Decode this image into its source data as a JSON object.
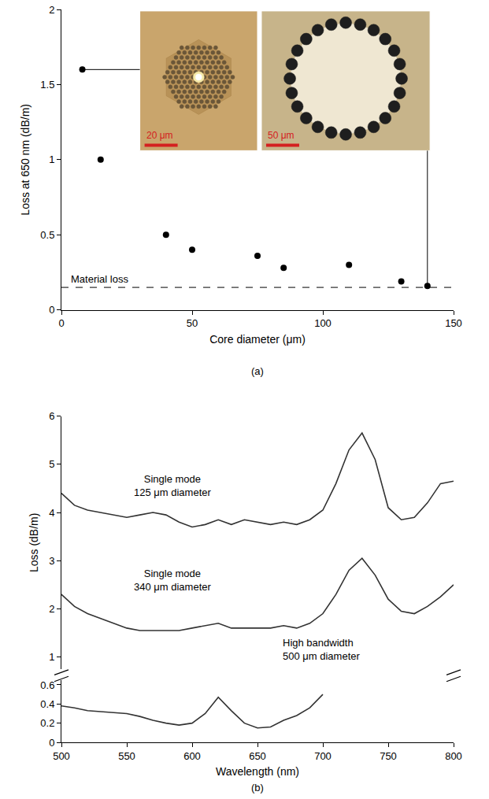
{
  "chart_data": [
    {
      "type": "scatter",
      "panel": "(a)",
      "x_label": "Core diameter (μm)",
      "y_label": "Loss at 650 nm (dB/m)",
      "x": [
        8,
        15,
        40,
        50,
        75,
        85,
        110,
        130,
        140
      ],
      "values": [
        1.6,
        1.0,
        0.5,
        0.4,
        0.36,
        0.28,
        0.3,
        0.19,
        0.16
      ],
      "color": "#000000",
      "marker": "circle",
      "xlim": [
        0,
        150
      ],
      "xticks": [
        0,
        50,
        100,
        150
      ],
      "ylim": [
        0,
        2
      ],
      "yticks": [
        0,
        0.5,
        1,
        1.5,
        2
      ],
      "grid": false,
      "reference_line": {
        "label": "Material loss",
        "value": 0.15,
        "line_style": "dash"
      },
      "insets": [
        {
          "scale_bar": "20 μm"
        },
        {
          "scale_bar": "50 μm"
        }
      ]
    },
    {
      "type": "line",
      "panel": "(b)",
      "x_label": "Wavelength (nm)",
      "y_label": "Loss (dB/m)",
      "x": [
        500,
        510,
        520,
        530,
        540,
        550,
        560,
        570,
        580,
        590,
        600,
        610,
        620,
        630,
        640,
        650,
        660,
        670,
        680,
        690,
        700,
        710,
        720,
        730,
        740,
        750,
        760,
        770,
        780,
        790,
        800
      ],
      "series": [
        {
          "name": "Single mode 125 μm diameter",
          "color": "#333333",
          "line_style": "solid",
          "axis": "y2",
          "values": [
            4.4,
            4.15,
            4.05,
            4.0,
            3.95,
            3.9,
            3.95,
            4.0,
            3.95,
            3.8,
            3.7,
            3.75,
            3.85,
            3.75,
            3.85,
            3.8,
            3.75,
            3.8,
            3.75,
            3.85,
            4.05,
            4.6,
            5.3,
            5.65,
            5.1,
            4.1,
            3.85,
            3.9,
            4.2,
            4.6,
            4.65
          ]
        },
        {
          "name": "Single mode 340 μm diameter",
          "color": "#333333",
          "line_style": "solid",
          "axis": "y2",
          "values": [
            2.3,
            2.05,
            1.9,
            1.8,
            1.7,
            1.6,
            1.55,
            1.55,
            1.55,
            1.55,
            1.6,
            1.65,
            1.7,
            1.6,
            1.6,
            1.6,
            1.6,
            1.65,
            1.6,
            1.7,
            1.9,
            2.3,
            2.8,
            3.05,
            2.7,
            2.2,
            1.95,
            1.9,
            2.05,
            2.25,
            2.5
          ]
        },
        {
          "name": "High bandwidth 500 μm diameter",
          "color": "#333333",
          "line_style": "solid",
          "values": [
            0.38,
            0.36,
            0.33,
            0.32,
            0.31,
            0.3,
            0.27,
            0.23,
            0.2,
            0.18,
            0.2,
            0.3,
            0.47,
            0.33,
            0.2,
            0.15,
            0.16,
            0.23,
            0.28,
            0.36,
            0.5,
            null,
            null,
            null,
            null,
            null,
            null,
            null,
            null,
            null,
            null
          ]
        }
      ],
      "xlim": [
        500,
        800
      ],
      "xticks": [
        500,
        550,
        600,
        650,
        700,
        750,
        800
      ],
      "ylim": [
        0,
        0.65
      ],
      "yticks": [
        0,
        0.2,
        0.4,
        0.6
      ],
      "y2lim": [
        0.75,
        6
      ],
      "y2ticks": [
        1,
        2,
        3,
        4,
        5,
        6
      ],
      "grid": false
    }
  ]
}
